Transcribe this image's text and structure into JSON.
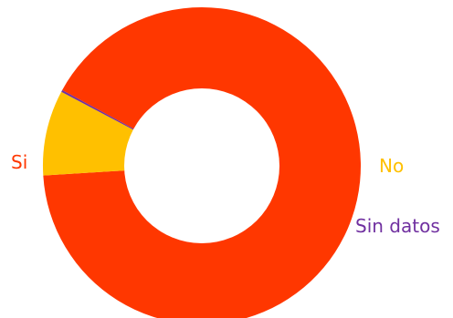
{
  "chart_data": {
    "type": "pie",
    "donut": true,
    "slices": [
      {
        "label": "Si",
        "value": 91.1,
        "color": "#ff3700"
      },
      {
        "label": "No",
        "value": 8.7,
        "color": "#ffc000"
      },
      {
        "label": "Sin datos",
        "value": 0.2,
        "color": "#7030a0"
      }
    ],
    "legend": "none",
    "title": ""
  }
}
